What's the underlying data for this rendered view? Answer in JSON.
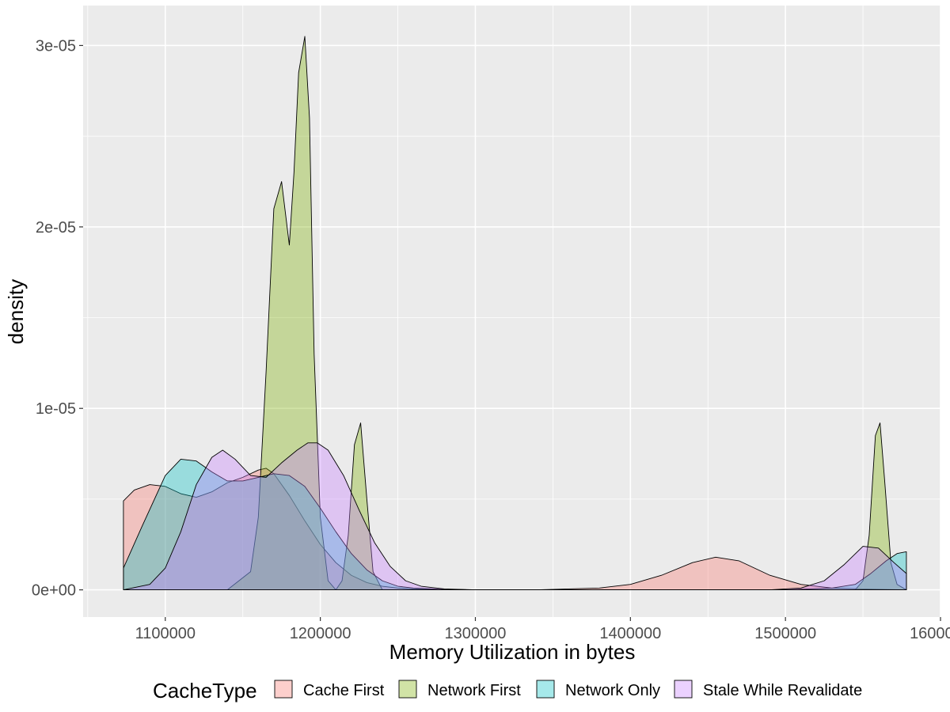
{
  "chart_data": {
    "type": "area",
    "subtype": "density",
    "title": "",
    "xlabel": "Memory Utilization in bytes",
    "ylabel": "density",
    "xlim": [
      1047000,
      1600000
    ],
    "ylim": [
      -1.5e-06,
      3.22e-05
    ],
    "x_ticks": [
      1100000,
      1200000,
      1300000,
      1400000,
      1500000,
      1600000
    ],
    "x_tick_labels": [
      "1100000",
      "1200000",
      "1300000",
      "1400000",
      "1500000",
      "1600000"
    ],
    "y_ticks": [
      0,
      1e-05,
      2e-05,
      3e-05
    ],
    "y_tick_labels": [
      "0e+00",
      "1e-05",
      "2e-05",
      "3e-05"
    ],
    "grid": true,
    "legend": {
      "title": "CacheType",
      "position": "bottom",
      "entries": [
        "Cache First",
        "Network First",
        "Network Only",
        "Stale While Revalidate"
      ]
    },
    "series": [
      {
        "name": "Cache First",
        "color": "#F8766D",
        "x": [
          1073000,
          1080000,
          1090000,
          1100000,
          1110000,
          1120000,
          1130000,
          1140000,
          1150000,
          1160000,
          1165000,
          1170000,
          1180000,
          1190000,
          1200000,
          1210000,
          1220000,
          1230000,
          1240000,
          1250000,
          1260000,
          1280000,
          1300000,
          1340000,
          1380000,
          1400000,
          1420000,
          1440000,
          1455000,
          1470000,
          1490000,
          1510000,
          1530000,
          1550000,
          1565000,
          1578000
        ],
        "y": [
          4.9e-06,
          5.5e-06,
          5.8e-06,
          5.7e-06,
          5.3e-06,
          5.1e-06,
          5.4e-06,
          5.9e-06,
          6.2e-06,
          6.6e-06,
          6.7e-06,
          6.4e-06,
          5.2e-06,
          3.8e-06,
          2.5e-06,
          1.5e-06,
          8e-07,
          4e-07,
          2e-07,
          1e-07,
          5e-08,
          2e-08,
          0,
          0,
          1e-07,
          3e-07,
          8e-07,
          1.5e-06,
          1.8e-06,
          1.6e-06,
          8e-07,
          3e-07,
          1e-07,
          5e-08,
          2e-08,
          0
        ]
      },
      {
        "name": "Network First",
        "color": "#7CAE00",
        "x": [
          1073000,
          1100000,
          1140000,
          1155000,
          1160000,
          1165000,
          1170000,
          1175000,
          1180000,
          1183000,
          1186000,
          1190000,
          1193000,
          1196000,
          1200000,
          1205000,
          1210000,
          1214000,
          1218000,
          1222000,
          1226000,
          1230000,
          1234000,
          1240000,
          1300000,
          1400000,
          1500000,
          1545000,
          1550000,
          1554000,
          1558000,
          1561000,
          1564000,
          1568000,
          1572000,
          1578000
        ],
        "y": [
          0,
          0,
          0,
          1e-06,
          4e-06,
          1.2e-05,
          2.1e-05,
          2.25e-05,
          1.9e-05,
          2.3e-05,
          2.85e-05,
          3.05e-05,
          2.6e-05,
          1.3e-05,
          4e-06,
          5e-07,
          0.0,
          5e-07,
          3e-06,
          8e-06,
          9.2e-06,
          5e-06,
          1e-06,
          0,
          0,
          0,
          0,
          0,
          5e-07,
          3e-06,
          8.5e-06,
          9.2e-06,
          6e-06,
          1.5e-06,
          3e-07,
          0
        ]
      },
      {
        "name": "Network Only",
        "color": "#00BFC4",
        "x": [
          1073000,
          1085000,
          1100000,
          1110000,
          1120000,
          1130000,
          1140000,
          1150000,
          1160000,
          1170000,
          1180000,
          1190000,
          1200000,
          1210000,
          1220000,
          1230000,
          1240000,
          1250000,
          1260000,
          1280000,
          1300000,
          1400000,
          1500000,
          1530000,
          1545000,
          1555000,
          1565000,
          1572000,
          1578000
        ],
        "y": [
          1.2e-06,
          3.5e-06,
          6.3e-06,
          7.2e-06,
          7.1e-06,
          6.5e-06,
          6e-06,
          6e-06,
          6.2e-06,
          6.4e-06,
          6.3e-06,
          5.7e-06,
          4.5e-06,
          3.2e-06,
          2e-06,
          1.1e-06,
          5e-07,
          2e-07,
          1e-07,
          2e-08,
          0,
          0,
          0,
          1e-07,
          3e-07,
          9e-07,
          1.6e-06,
          2e-06,
          2.1e-06
        ]
      },
      {
        "name": "Stale While Revalidate",
        "color": "#C77CFF",
        "x": [
          1073000,
          1090000,
          1100000,
          1110000,
          1120000,
          1130000,
          1137000,
          1145000,
          1155000,
          1165000,
          1175000,
          1185000,
          1192000,
          1198000,
          1205000,
          1215000,
          1225000,
          1235000,
          1245000,
          1255000,
          1265000,
          1280000,
          1300000,
          1400000,
          1490000,
          1510000,
          1525000,
          1538000,
          1550000,
          1560000,
          1570000,
          1578000
        ],
        "y": [
          0,
          3e-07,
          1.2e-06,
          3.2e-06,
          5.8e-06,
          7.3e-06,
          7.7e-06,
          7.2e-06,
          6.3e-06,
          6.2e-06,
          7e-06,
          7.7e-06,
          8.1e-06,
          8.1e-06,
          7.7e-06,
          6.3e-06,
          4.4e-06,
          2.6e-06,
          1.3e-06,
          5e-07,
          2e-07,
          5e-08,
          0,
          0,
          0,
          1e-07,
          5e-07,
          1.4e-06,
          2.4e-06,
          2.3e-06,
          1.5e-06,
          9e-07
        ]
      }
    ]
  }
}
